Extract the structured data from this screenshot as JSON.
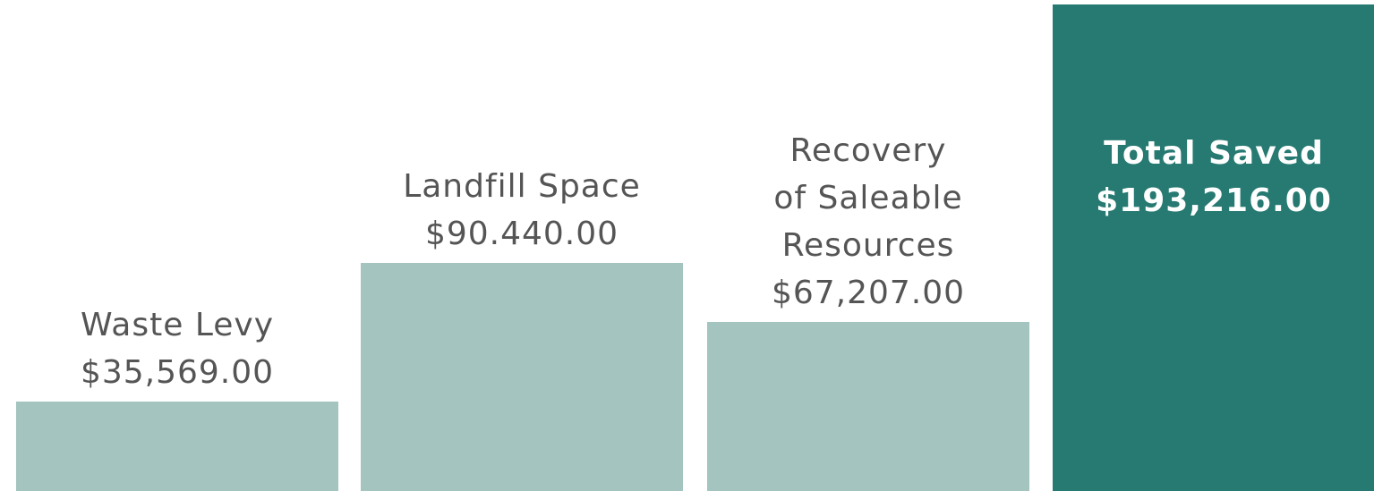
{
  "chart_data": {
    "type": "bar",
    "categories": [
      "Waste Levy",
      "Landfill Space",
      "Recovery\nof Saleable\nResources",
      "Total Saved"
    ],
    "values": [
      35569,
      90440,
      67207,
      193216
    ],
    "value_labels": [
      "$35,569.00",
      "$90.440.00",
      "$67,207.00",
      "$193,216.00"
    ],
    "colors": [
      "#a3c4bf",
      "#a3c4bf",
      "#a3c4bf",
      "#267a72"
    ]
  }
}
